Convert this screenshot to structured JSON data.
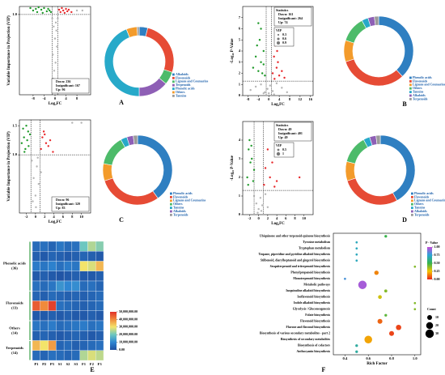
{
  "chart_data": [
    {
      "type": "scatter",
      "panel": "A",
      "xlabel": "Log₂FC",
      "ylabel": "Variable Importance in Projection (VIP)",
      "xlim": [
        -13,
        13
      ],
      "ylim": [
        0,
        1.1
      ],
      "xticks": [
        -8,
        -4,
        0,
        4,
        8
      ],
      "yticks": [
        {
          "value": 1.0,
          "label": "1.0"
        }
      ],
      "vlines": [
        -1,
        1
      ],
      "hlines": [
        1
      ],
      "series": [
        {
          "color": "#1f9a2a",
          "x": [
            -9,
            -8,
            -7,
            -6.5,
            -6,
            -5,
            -4.5,
            -4,
            -3,
            -2.5,
            -2,
            -1.5
          ],
          "values": [
            1.08,
            1.05,
            1.07,
            1.03,
            1.09,
            1.06,
            1.02,
            1.08,
            1.04,
            1.07,
            1.05,
            1.03
          ]
        },
        {
          "color": "#e8282b",
          "x": [
            1.5,
            2,
            2.5,
            3,
            3.5,
            4,
            4.5,
            5,
            6
          ],
          "values": [
            1.06,
            1.03,
            1.08,
            1.05,
            1.02,
            1.07,
            1.04,
            1.06,
            1.03
          ]
        },
        {
          "color": "#b5b5b5",
          "x": [
            -1,
            -0.5,
            0,
            0.3,
            0.7,
            -0.8,
            0.2,
            -0.3,
            0.5,
            1,
            -0.6,
            0.1,
            8,
            10
          ],
          "values": [
            0.95,
            0.85,
            0.7,
            0.9,
            0.6,
            0.5,
            0.4,
            0.3,
            0.8,
            0.95,
            0.2,
            0.15,
            1.05,
            1.05
          ]
        }
      ],
      "stats_corner": "lower right",
      "stats": {
        "lines": [
          "Down: 236",
          "Insignificant: 167",
          "Up: 96"
        ]
      }
    },
    {
      "type": "donut",
      "categories": [
        "Alkaloids",
        "Flavonoids",
        "Lignans and Coumarins",
        "Terpenoids",
        "Phenolic acids",
        "Others",
        "Tannins"
      ],
      "values": [
        4,
        26,
        6,
        14,
        44,
        5,
        1
      ],
      "colors": [
        "#2f7fc1",
        "#e64b35",
        "#4dbb6a",
        "#8e5fb5",
        "#27a9c9",
        "#f39b2b",
        "#9a9a9a"
      ]
    },
    {
      "type": "scatter",
      "panel": "B",
      "xlabel": "Log₂FC",
      "ylabel": "-Log₁₀ P-Value",
      "xlim": [
        -10,
        17
      ],
      "ylim": [
        0,
        8
      ],
      "xticks": [
        -8,
        -4,
        0,
        4,
        8,
        12,
        16
      ],
      "yticks": [
        0,
        1,
        2,
        3,
        4,
        5,
        6,
        7
      ],
      "vlines": [
        -1,
        1
      ],
      "hlines": [
        1.3
      ],
      "series": [
        {
          "color": "#1f9a2a",
          "x": [
            -6,
            -5,
            -4.5,
            -4,
            -3.5,
            -3,
            -2.5,
            -2,
            -1.5,
            -3,
            -4,
            -2
          ],
          "values": [
            2.5,
            3.5,
            4.5,
            6.5,
            5,
            3,
            2,
            4,
            1.8,
            6,
            2.2,
            2.8
          ]
        },
        {
          "color": "#e8282b",
          "x": [
            1.5,
            2,
            2.5,
            3,
            3.5,
            4,
            5,
            6,
            2.2,
            3.2
          ],
          "values": [
            2,
            3.5,
            4.5,
            2.5,
            3,
            1.8,
            2.2,
            1.6,
            1.5,
            4
          ]
        },
        {
          "color": "#b5b5b5",
          "x": [
            -7,
            -5,
            -3,
            -1.5,
            -0.5,
            0,
            0.5,
            1.5,
            3,
            5,
            7,
            -2,
            2
          ],
          "values": [
            0.5,
            0.8,
            1,
            0.3,
            0.6,
            0.2,
            0.9,
            0.4,
            1.1,
            0.7,
            0.3,
            0.2,
            0.1
          ]
        }
      ],
      "stats_corner": "upper right",
      "stats": {
        "title": "Statistics",
        "lines": [
          "Down: 161",
          "Insignificant: 264",
          "Up: 74"
        ]
      },
      "size_legend": {
        "title": "VIP",
        "values": [
          0.3,
          0.6,
          0.9
        ]
      }
    },
    {
      "type": "donut",
      "categories": [
        "Phenolic acids",
        "Flavonoids",
        "Lignans and Coumarins",
        "Others",
        "Tannins",
        "Alkaloids",
        "Terpenoids"
      ],
      "values": [
        38,
        32,
        10,
        12,
        3,
        3,
        2
      ],
      "colors": [
        "#2f7fc1",
        "#e64b35",
        "#f39b2b",
        "#4dbb6a",
        "#27a9c9",
        "#8e5fb5",
        "#9a9a9a"
      ]
    },
    {
      "type": "scatter",
      "panel": "C",
      "xlabel": "Log₂FC",
      "ylabel": "Variable Importance in Projection (VIP)",
      "xlim": [
        -3.5,
        12
      ],
      "ylim": [
        0,
        1.6
      ],
      "xticks": [
        -2,
        0,
        2,
        4,
        6,
        8,
        10
      ],
      "yticks": [
        {
          "value": 1.0,
          "label": "1.0"
        },
        {
          "value": 1.5,
          "label": "1.5"
        }
      ],
      "vlines": [
        -1,
        1
      ],
      "hlines": [
        1
      ],
      "series": [
        {
          "color": "#1f9a2a",
          "x": [
            -3,
            -2.7,
            -2.5,
            -2.2,
            -2,
            -1.8,
            -1.5,
            -1.2,
            -2.4,
            -1.6
          ],
          "values": [
            1.2,
            1.45,
            1.3,
            1.1,
            1.5,
            1.25,
            1.15,
            1.35,
            1.05,
            1.4
          ]
        },
        {
          "color": "#e8282b",
          "x": [
            1.2,
            1.5,
            2,
            2.3,
            2.8,
            3.2,
            3.8,
            1.8
          ],
          "values": [
            1.1,
            1.3,
            1.35,
            1.2,
            1.15,
            1.25,
            1.05,
            1.4
          ]
        },
        {
          "color": "#b5b5b5",
          "x": [
            -0.8,
            -0.4,
            0,
            0.3,
            0.7,
            1.2,
            -0.6,
            0.1,
            0.5,
            8,
            10
          ],
          "values": [
            0.9,
            0.6,
            0.3,
            0.8,
            0.5,
            0.7,
            0.2,
            0.1,
            0.95,
            1.55,
            1.55
          ]
        }
      ],
      "stats_corner": "lower right",
      "stats": {
        "lines": [
          "Down: 96",
          "Insignificant: 320",
          "Up: 83"
        ]
      }
    },
    {
      "type": "donut",
      "categories": [
        "Phenolic acids",
        "Flavonoids",
        "Lignans and Coumarins",
        "Others",
        "Tannins",
        "Alkaloids",
        "Terpenoids"
      ],
      "values": [
        40,
        30,
        8,
        14,
        3,
        3,
        2
      ],
      "colors": [
        "#2f7fc1",
        "#e64b35",
        "#f39b2b",
        "#4dbb6a",
        "#27a9c9",
        "#8e5fb5",
        "#9a9a9a"
      ]
    },
    {
      "type": "scatter",
      "panel": "D",
      "xlabel": "Log₂FC",
      "ylabel": "-Log₁₀ P-Value",
      "xlim": [
        -3.5,
        12
      ],
      "ylim": [
        0,
        5
      ],
      "xticks": [
        -2,
        0,
        2,
        4,
        6,
        8,
        10
      ],
      "yticks": [
        0,
        1,
        2,
        3,
        4
      ],
      "vlines": [
        -1,
        1
      ],
      "hlines": [
        1.3
      ],
      "series": [
        {
          "color": "#1f9a2a",
          "x": [
            -2.5,
            -2.2,
            -2,
            -1.8,
            -1.5,
            -1.2,
            -1,
            -2.3,
            -1.6
          ],
          "values": [
            2,
            3.5,
            4,
            2.8,
            3,
            1.8,
            2.4,
            1.6,
            3.7
          ]
        },
        {
          "color": "#e8282b",
          "x": [
            1.2,
            1.5,
            2,
            2.5,
            3,
            3.5,
            4,
            9
          ],
          "values": [
            1.6,
            2.5,
            3.5,
            2,
            2.8,
            1.5,
            1.8,
            2
          ]
        },
        {
          "color": "#b5b5b5",
          "x": [
            -1,
            -0.5,
            0,
            0.4,
            0.8,
            1.5,
            2,
            -0.2,
            0.6
          ],
          "values": [
            1,
            0.6,
            0.3,
            0.9,
            0.5,
            1.1,
            0.4,
            0.1,
            0.2
          ]
        }
      ],
      "stats_corner": "upper right",
      "stats": {
        "title": "Statistics",
        "lines": [
          "Down: 49",
          "Insignificant: 401",
          "Up: 49"
        ]
      },
      "size_legend": {
        "title": "VIP",
        "values": [
          0.5,
          1.0
        ]
      }
    },
    {
      "type": "donut",
      "categories": [
        "Phenolic acids",
        "Flavonoids",
        "Lignans and Coumarins",
        "Others",
        "Tannins",
        "Alkaloids",
        "Terpenoids"
      ],
      "values": [
        42,
        28,
        9,
        13,
        3,
        3,
        2
      ],
      "colors": [
        "#2f7fc1",
        "#e64b35",
        "#f39b2b",
        "#4dbb6a",
        "#27a9c9",
        "#8e5fb5",
        "#9a9a9a"
      ]
    },
    {
      "type": "heatmap",
      "panel": "E",
      "columns": [
        "P1",
        "P2",
        "P3",
        "S1",
        "S2",
        "S3",
        "F1",
        "F2",
        "F3"
      ],
      "groups": [
        {
          "name": "Phenolic acids",
          "size": "(36)",
          "rows": [
            [
              5000000,
              6000000,
              4000000,
              7000000,
              5000000,
              6000000,
              20000000,
              25000000,
              22000000
            ],
            [
              3000000,
              2000000,
              4000000,
              3000000,
              2000000,
              3000000,
              4000000,
              3000000,
              2000000
            ],
            [
              8000000,
              7000000,
              9000000,
              6000000,
              8000000,
              7000000,
              30000000,
              28000000,
              35000000
            ],
            [
              2000000,
              3000000,
              2000000,
              1000000,
              2000000,
              3000000,
              2000000,
              2000000,
              3000000
            ],
            [
              6000000,
              5000000,
              7000000,
              12000000,
              10000000,
              11000000,
              5000000,
              6000000,
              4000000
            ]
          ]
        },
        {
          "name": "Flavonoids",
          "size": "(13)",
          "rows": [
            [
              4000000,
              3000000,
              5000000,
              4000000,
              3000000,
              4000000,
              3000000,
              4000000,
              5000000
            ],
            [
              45000000,
              40000000,
              48000000,
              6000000,
              5000000,
              4000000,
              3000000,
              4000000,
              5000000
            ],
            [
              2000000,
              2000000,
              3000000,
              2000000,
              3000000,
              2000000,
              2000000,
              3000000,
              2000000
            ]
          ]
        },
        {
          "name": "Others",
          "size": "(14)",
          "rows": [
            [
              7000000,
              6000000,
              8000000,
              5000000,
              6000000,
              7000000,
              8000000,
              6000000,
              7000000
            ],
            [
              3000000,
              4000000,
              3000000,
              2000000,
              3000000,
              4000000,
              3000000,
              2000000,
              3000000
            ]
          ]
        },
        {
          "name": "Terpenoids",
          "size": "(14)",
          "rows": [
            [
              35000000,
              30000000,
              38000000,
              4000000,
              5000000,
              3000000,
              4000000,
              5000000,
              6000000
            ],
            [
              5000000,
              4000000,
              6000000,
              5000000,
              4000000,
              5000000,
              25000000,
              28000000,
              26000000
            ]
          ]
        }
      ],
      "zlim": [
        0,
        50000000
      ],
      "zticks": [
        {
          "value": 0,
          "label": "0.00"
        },
        {
          "value": 10000000,
          "label": "10,000,000.00"
        },
        {
          "value": 20000000,
          "label": "20,000,000.00"
        },
        {
          "value": 30000000,
          "label": "30,000,000.00"
        },
        {
          "value": 40000000,
          "label": "40,000,000.00"
        },
        {
          "value": 50000000,
          "label": "50,000,000.00"
        }
      ],
      "colorscale": [
        "#1f4fa0",
        "#2f86d2",
        "#6cc7c0",
        "#f3e46a",
        "#f08a3b",
        "#e0302a"
      ]
    },
    {
      "type": "bubble",
      "panel": "F",
      "xlabel": "Rich Factor",
      "categories": [
        "Ubiquinone and other terpenoid-quinone biosynthesis",
        "Tyrosine metabolism",
        "Tryptophan metabolism",
        "Tropane, piperidine and pyridine alkaloid biosynthesis",
        "Stilbenoid, diarylheptanoid and gingerol biosynthesis",
        "Sesquiterpenoid and triterpenoid biosynthesis",
        "Phenylpropanoid biosynthesis",
        "Monoterpenoid biosynthesis",
        "Metabolic pathways",
        "Isoquinoline alkaloid biosynthesis",
        "Isoflavonoid biosynthesis",
        "Indole alkaloid biosynthesis",
        "Glycolysis / Gluconeogenesis",
        "Folate biosynthesis",
        "Flavonoid biosynthesis",
        "Flavone and flavonol biosynthesis",
        "Biosynthesis of various secondary metabolites - part 2",
        "Biosynthesis of secondary metabolites",
        "Biosynthesis of cofactors",
        "Anthocyanin biosynthesis"
      ],
      "x": [
        0.75,
        0.5,
        0.5,
        0.5,
        0.5,
        1.0,
        0.67,
        0.4,
        0.55,
        0.75,
        0.7,
        1.0,
        1.0,
        0.75,
        0.7,
        0.86,
        0.8,
        0.6,
        0.5,
        0.5
      ],
      "values": [
        0.5,
        0.7,
        0.7,
        0.7,
        0.7,
        0.4,
        0.15,
        0.8,
        0.95,
        0.4,
        0.3,
        0.4,
        0.4,
        0.45,
        0.1,
        0.05,
        0.05,
        0.2,
        0.65,
        0.65
      ],
      "sizes": [
        3,
        2,
        2,
        2,
        2,
        2,
        8,
        2,
        30,
        4,
        6,
        2,
        2,
        3,
        10,
        12,
        10,
        25,
        3,
        3
      ],
      "xlim": [
        0.3,
        1.05
      ],
      "xticks": [
        0.4,
        0.6,
        0.8,
        {
          "value": 1.0,
          "label": "1.0"
        }
      ],
      "colorbar": {
        "title": "P - Value",
        "lim": [
          0,
          1
        ],
        "ticks": [
          {
            "value": 1,
            "label": "1.00"
          },
          {
            "value": 0.75,
            "label": "0.75"
          },
          {
            "value": 0.5,
            "label": "0.50"
          },
          {
            "value": 0.25,
            "label": "0.25"
          },
          {
            "value": 0,
            "label": "0.00"
          }
        ]
      },
      "colorscale": [
        "#e8251f",
        "#f5c400",
        "#37b34a",
        "#2aa5d8",
        "#c54ad8"
      ],
      "size_legend": {
        "title": "Count",
        "values": [
          10,
          20,
          30
        ]
      }
    }
  ]
}
